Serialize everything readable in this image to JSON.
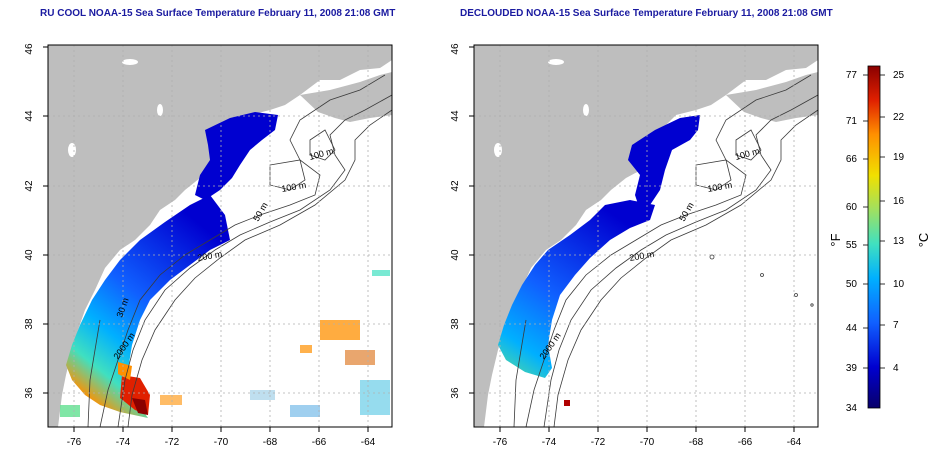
{
  "panels": [
    {
      "title": "RU COOL NOAA-15 Sea Surface Temperature February 11, 2008 21:08 GMT",
      "contour_labels": [
        "100 m",
        "100 m",
        "50 m",
        "200 m",
        "30 m",
        "2000 m"
      ]
    },
    {
      "title": "DECLOUDED NOAA-15 Sea Surface Temperature February 11, 2008 21:08 GMT",
      "contour_labels": [
        "100 m",
        "100 m",
        "50 m",
        "200 m",
        "2000 m"
      ]
    }
  ],
  "axes": {
    "x_ticks": [
      "-76",
      "-74",
      "-72",
      "-70",
      "-68",
      "-66",
      "-64"
    ],
    "y_ticks": [
      "36",
      "38",
      "40",
      "42",
      "44",
      "46"
    ],
    "x_range": [
      -77.2,
      -63.0
    ],
    "y_range": [
      35.0,
      46.0
    ]
  },
  "colorbar": {
    "f_label": "°F",
    "c_label": "°C",
    "f_ticks": [
      "77",
      "71",
      "66",
      "60",
      "55",
      "50",
      "44",
      "39",
      "34"
    ],
    "c_ticks": [
      "25",
      "22",
      "19",
      "16",
      "13",
      "10",
      "7",
      "4"
    ],
    "colors": [
      "#08006a",
      "#0000d0",
      "#1060ff",
      "#00b0ff",
      "#40e0c0",
      "#a0e060",
      "#f0e000",
      "#ff9000",
      "#e02000",
      "#8a0000"
    ]
  },
  "colors": {
    "land": "#bebebe",
    "contour": "#3a3a3a",
    "title": "#1a1aa0",
    "grid": "#b0b0b0"
  }
}
